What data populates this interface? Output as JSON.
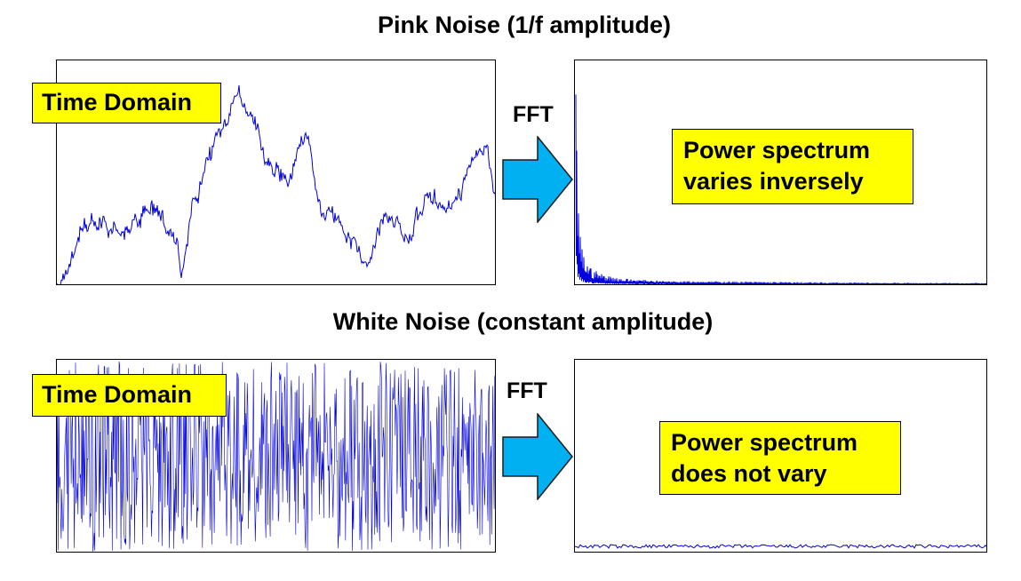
{
  "pink": {
    "title": "Pink Noise (1/f amplitude)",
    "time_label": "Time Domain",
    "fft_label": "FFT",
    "spectrum_line1": "Power spectrum",
    "spectrum_line2": "varies inversely"
  },
  "white": {
    "title": "White Noise (constant amplitude)",
    "time_label": "Time Domain",
    "fft_label": "FFT",
    "spectrum_line1": "Power spectrum",
    "spectrum_line2": "does not vary"
  },
  "colors": {
    "signal": "#0000dd",
    "label_background": "#ffff00",
    "arrow_fill": "#00b0f0"
  }
}
